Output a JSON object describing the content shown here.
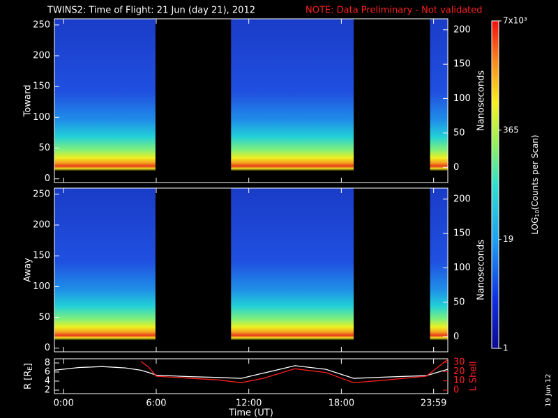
{
  "title": "TWINS2: Time of Flight: 21 Jun (day  21), 2012",
  "note": "NOTE: Data Preliminary - Not validated",
  "stamp": "19 Jun 12",
  "chart_data": [
    {
      "type": "spectrogram",
      "ylabel": "Toward",
      "y2label": "Nanoseconds",
      "xlim": [
        -0.6,
        24.9
      ],
      "xticks": [
        0,
        6,
        12,
        18,
        23.98
      ],
      "ylim": [
        -6,
        260
      ],
      "yticks": [
        0,
        50,
        100,
        150,
        200,
        250
      ],
      "y2lim": [
        -22,
        216
      ],
      "y2ticks": [
        0,
        50,
        100,
        150,
        200
      ],
      "segments": [
        {
          "start": -0.6,
          "end": 5.95
        },
        {
          "start": 10.85,
          "end": 18.8
        },
        {
          "start": 23.75,
          "end": 24.9
        }
      ]
    },
    {
      "type": "spectrogram",
      "ylabel": "Away",
      "y2label": "Nanoseconds",
      "xlim": [
        -0.6,
        24.9
      ],
      "xticks": [
        0,
        6,
        12,
        18,
        23.98
      ],
      "ylim": [
        -6,
        260
      ],
      "yticks": [
        0,
        50,
        100,
        150,
        200,
        250
      ],
      "y2lim": [
        -22,
        216
      ],
      "y2ticks": [
        0,
        50,
        100,
        150,
        200
      ],
      "segments": [
        {
          "start": -0.6,
          "end": 5.95
        },
        {
          "start": 10.85,
          "end": 18.8
        },
        {
          "start": 23.75,
          "end": 24.9
        }
      ]
    },
    {
      "type": "line",
      "xlabel": "Time (UT)",
      "ylabel": "R [R",
      "ylabel_sub": "E",
      "ylabel_end": "]",
      "y2label": "L Shell",
      "xlim": [
        -0.6,
        24.9
      ],
      "xticks": [
        {
          "value": 0,
          "label": "0:00"
        },
        {
          "value": 6,
          "label": "6:00"
        },
        {
          "value": 12,
          "label": "12:00"
        },
        {
          "value": 18,
          "label": "18:00"
        },
        {
          "value": 23.98,
          "label": "23:59"
        }
      ],
      "ylim": [
        1.23,
        8.92
      ],
      "yticks": [
        2,
        4,
        6,
        8
      ],
      "y2lim": [
        -3.75,
        33.75
      ],
      "y2ticks": [
        0,
        10,
        20,
        30
      ],
      "y2color": "#ff2020",
      "x": [
        -0.6,
        1,
        2.5,
        4,
        5,
        5.5,
        6,
        8,
        10,
        11.5,
        13,
        15,
        17,
        18.8,
        21,
        23.5,
        24.9
      ],
      "series": [
        {
          "color": "#ffffff",
          "values": [
            6.4,
            7.0,
            7.2,
            6.9,
            6.4,
            5.9,
            5.3,
            5.0,
            4.8,
            4.6,
            5.8,
            7.4,
            6.6,
            4.6,
            4.9,
            5.2,
            6.6
          ]
        },
        {
          "color": "#ff2020",
          "axis": "y2",
          "values": [
            null,
            null,
            null,
            null,
            31,
            25,
            15,
            13,
            11,
            8,
            13,
            23,
            19,
            8,
            11,
            15,
            33
          ]
        }
      ]
    },
    {
      "type": "colorbar",
      "label": "LOG",
      "label_sub": "10",
      "label_end": "(Counts per Scan)",
      "log": true,
      "lim": [
        1,
        7000
      ],
      "ticks": [
        1,
        19,
        365,
        {
          "value": 7000,
          "label": "7x10³"
        }
      ]
    }
  ]
}
